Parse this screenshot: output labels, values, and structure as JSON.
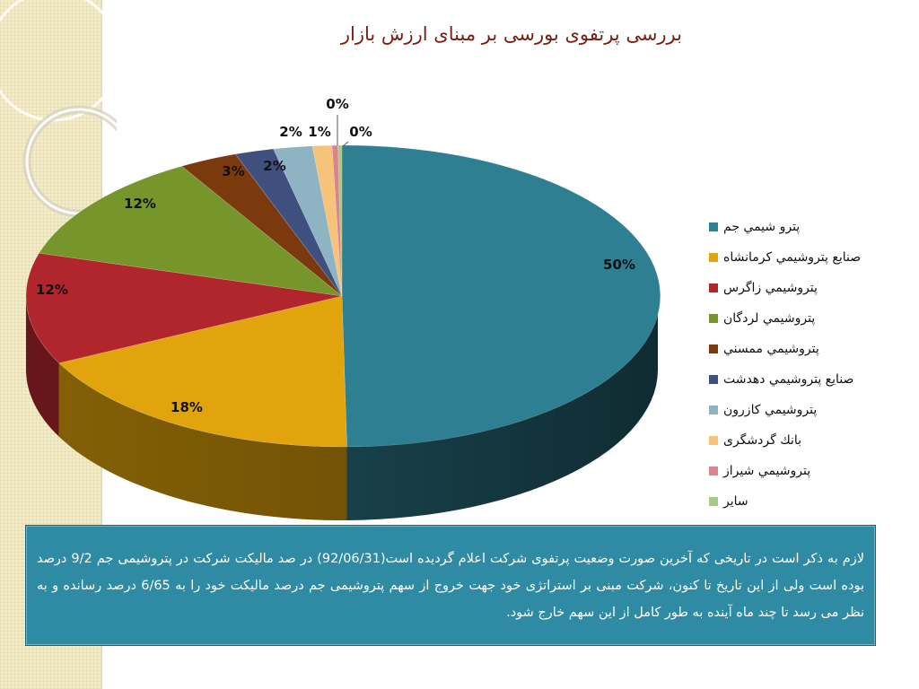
{
  "slide": {
    "title": "بررسی پرتفوی بورسی بر مبنای ارزش بازار",
    "note": "لازم به ذکر است در تاریخی که آخرین صورت وضعیت پرتفوی شرکت اعلام گردیده است(92/06/31) در صد مالیکت شرکت در پتروشیمی جم 9/2 درصد بوده است ولی از این تاریخ تا کنون، شرکت مبنی بر استراتژی خود جهت خروج از سهم پتروشیمی جم درصد مالیکت خود را به 6/65 درصد رسانده و به نظر   می رسد تا چند ماه آینده به طور کامل از این سهم خارج شود."
  },
  "chart_data": {
    "type": "pie",
    "title": "بررسی پرتفوی بورسی بر مبنای ارزش بازار",
    "legend_position": "right",
    "slices": [
      {
        "name": "پترو شيمي جم",
        "value": 50,
        "label": "50%",
        "color": "#2f7f93"
      },
      {
        "name": "صنايع پتروشيمي كرمانشاه",
        "value": 18,
        "label": "18%",
        "color": "#e1a40c"
      },
      {
        "name": "پتروشيمي زاگرس",
        "value": 12,
        "label": "12%",
        "color": "#b0262c"
      },
      {
        "name": "پتروشيمي لردگان",
        "value": 12,
        "label": "12%",
        "color": "#76952b"
      },
      {
        "name": "پتروشيمي ممسني",
        "value": 3,
        "label": "3%",
        "color": "#7a3a0e"
      },
      {
        "name": "صنايع پتروشيمي دهدشت",
        "value": 2,
        "label": "2%",
        "color": "#3f4f7e"
      },
      {
        "name": "پتروشيمي كازرون",
        "value": 2,
        "label": "2%",
        "color": "#8eb3c3"
      },
      {
        "name": "بانك گردشگری",
        "value": 1,
        "label": "1%",
        "color": "#f7c27a"
      },
      {
        "name": "پتروشيمي شيراز",
        "value": 0.3,
        "label": "0%",
        "color": "#d9858a"
      },
      {
        "name": "ساير",
        "value": 0.2,
        "label": "0%",
        "color": "#a9c98a"
      }
    ]
  }
}
